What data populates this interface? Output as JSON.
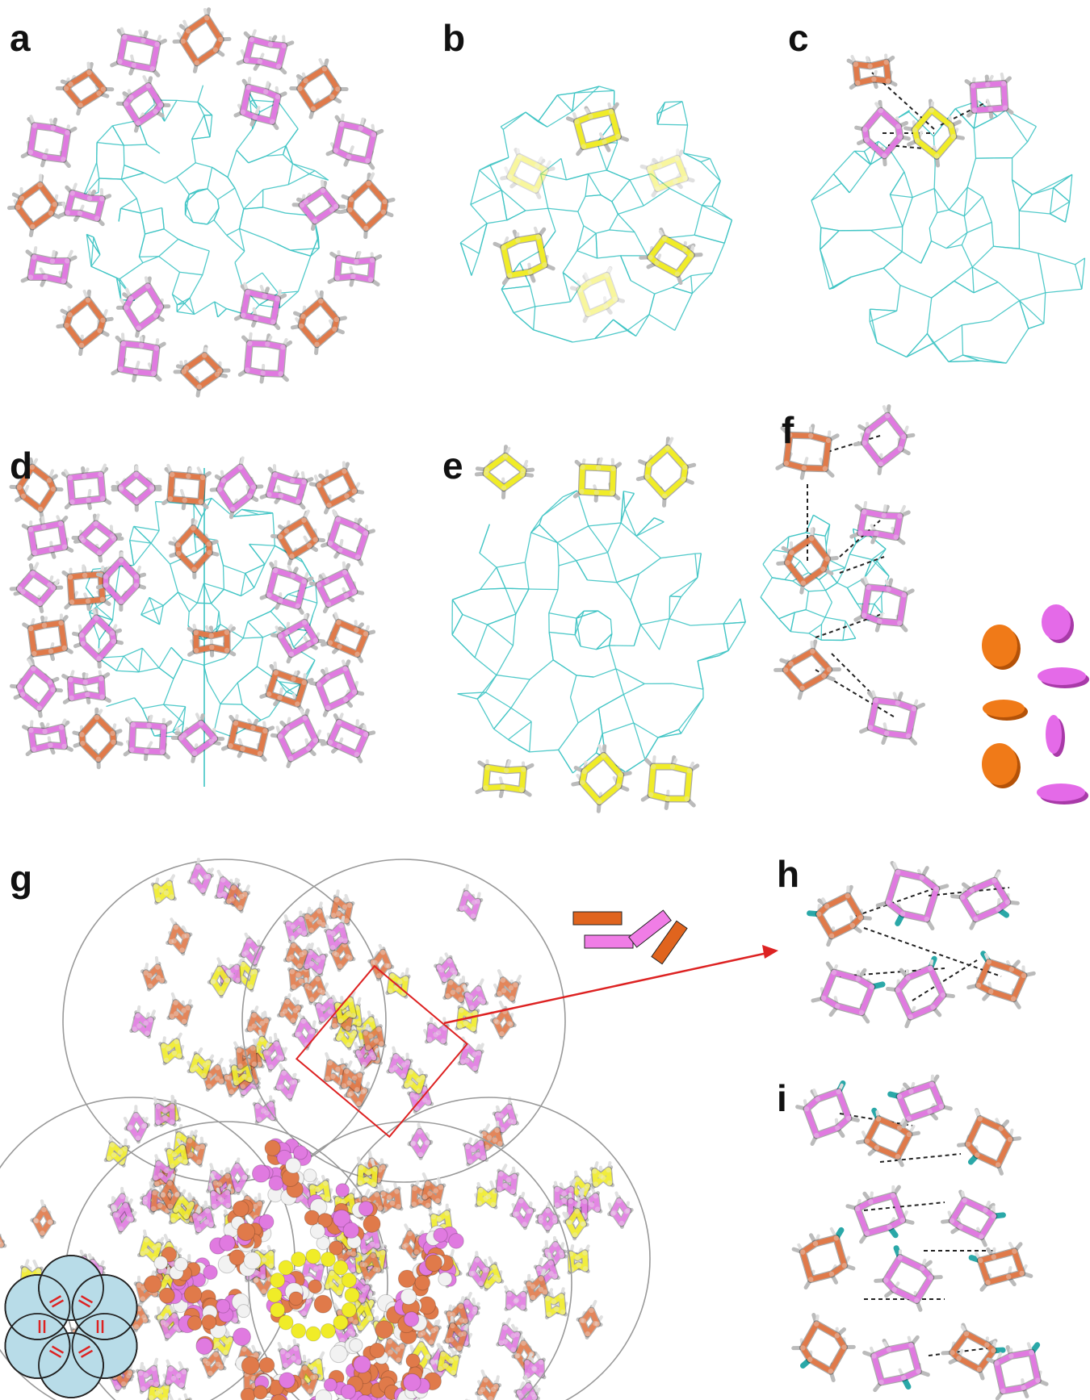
{
  "figure": {
    "panel_labels": {
      "a": "a",
      "b": "b",
      "c": "c",
      "d": "d",
      "e": "e",
      "f": "f",
      "g": "g",
      "h": "h",
      "i": "i"
    },
    "colors": {
      "framework": "#3fc4c4",
      "molecule_orange": "#e07a4a",
      "molecule_pink": "#e07ae0",
      "molecule_yellow": "#f0ec28",
      "hydrogen": "#e8e8e8",
      "fluorine": "#2aa8a8",
      "highlight_red": "#dd2222",
      "circle_gray": "#999999",
      "inset_fill": "#b8dce8",
      "disk_orange": "#f07a18",
      "disk_magenta": "#e46ae8"
    }
  }
}
